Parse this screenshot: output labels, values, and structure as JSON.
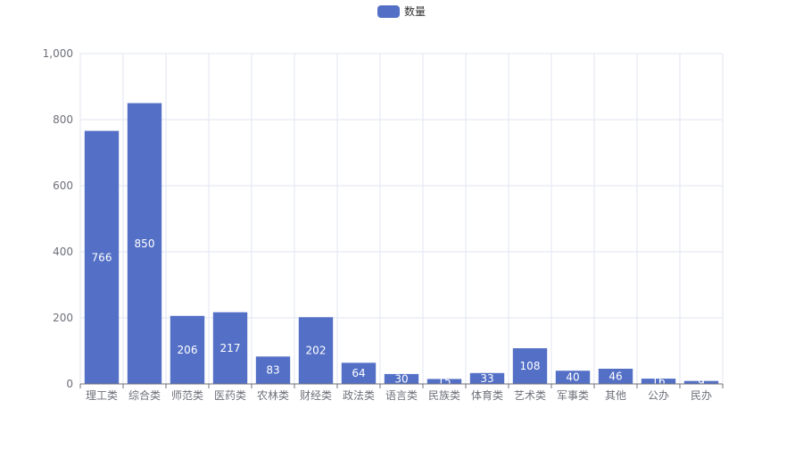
{
  "chart_data": {
    "type": "bar",
    "legend": [
      "数量"
    ],
    "series": [
      {
        "name": "数量",
        "values": [
          766,
          850,
          206,
          217,
          83,
          202,
          64,
          30,
          15,
          33,
          108,
          40,
          46,
          16,
          9
        ]
      }
    ],
    "categories": [
      "理工类",
      "综合类",
      "师范类",
      "医药类",
      "农林类",
      "财经类",
      "政法类",
      "语言类",
      "民族类",
      "体育类",
      "艺术类",
      "军事类",
      "其他",
      "公办",
      "民办"
    ],
    "y_ticks": [
      "0",
      "200",
      "400",
      "600",
      "800",
      "1,000"
    ],
    "ylim": [
      0,
      1000
    ],
    "xlabel": "",
    "ylabel": "",
    "grid": true,
    "legend_position": "top-center",
    "data_labels": "inside-middle"
  },
  "colors": {
    "bar": "#5470c6",
    "grid": "#e0e6f1",
    "axis": "#6e7079",
    "label": "#ffffff"
  }
}
